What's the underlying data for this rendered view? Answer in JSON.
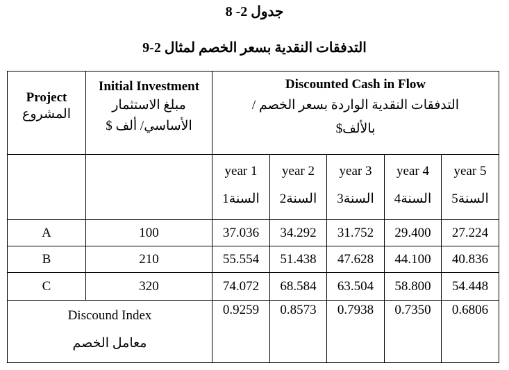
{
  "caption": {
    "table_number": "جدول 2- 8",
    "title": "التدفقات النقدية بسعر الخصم لمثال 2-9"
  },
  "header": {
    "project_en": "Project",
    "project_ar": "المشروع",
    "investment_en": "Initial Investment",
    "investment_ar1": "مبلغ الاستثمار",
    "investment_ar2": "الأساسي/ ألف $",
    "dcf_en": "Discounted Cash in Flow",
    "dcf_ar1": "التدفقات النقدية الواردة بسعر الخصم /",
    "dcf_ar2": "بالألف$"
  },
  "years": [
    {
      "en": "year 1",
      "ar": "السنة1"
    },
    {
      "en": "year 2",
      "ar": "السنة2"
    },
    {
      "en": "year 3",
      "ar": "السنة3"
    },
    {
      "en": "year 4",
      "ar": "السنة4"
    },
    {
      "en": "year 5",
      "ar": "السنة5"
    }
  ],
  "rows": [
    {
      "project": "A",
      "investment": "100",
      "values": [
        "37.036",
        "34.292",
        "31.752",
        "29.400",
        "27.224"
      ]
    },
    {
      "project": "B",
      "investment": "210",
      "values": [
        "55.554",
        "51.438",
        "47.628",
        "44.100",
        "40.836"
      ]
    },
    {
      "project": "C",
      "investment": "320",
      "values": [
        "74.072",
        "68.584",
        "63.504",
        "58.800",
        "54.448"
      ]
    }
  ],
  "index_row": {
    "label_en": "Discound Index",
    "label_ar": "معامل الخصم",
    "values": [
      "0.9259",
      "0.8573",
      "0.7938",
      "0.7350",
      "0.6806"
    ]
  }
}
